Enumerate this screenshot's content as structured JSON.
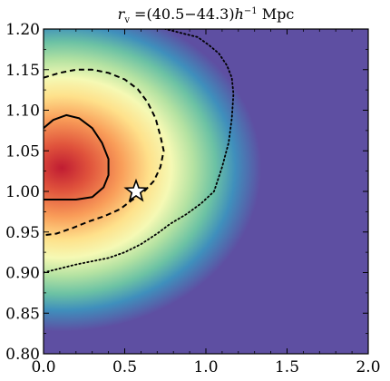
{
  "chart_data": {
    "type": "heatmap",
    "title": "r_v = (40.5−44.3) h⁻¹ Mpc",
    "title_parts": {
      "r": "r",
      "sub": "v",
      "range": " =(40.5−44.3)",
      "h": "h",
      "sup": "−1",
      "unit": " Mpc"
    },
    "xlabel": "",
    "ylabel": "",
    "xlim": [
      0.0,
      2.0
    ],
    "ylim": [
      0.8,
      1.2
    ],
    "x_ticks": [
      0.0,
      0.5,
      1.0,
      1.5,
      2.0
    ],
    "x_tick_labels": [
      "0.0",
      "0.5",
      "1.0",
      "1.5",
      "2.0"
    ],
    "y_ticks": [
      0.8,
      0.85,
      0.9,
      0.95,
      1.0,
      1.05,
      1.1,
      1.15,
      1.2
    ],
    "y_tick_labels": [
      "0.80",
      "0.85",
      "0.90",
      "0.95",
      "1.00",
      "1.05",
      "1.10",
      "1.15",
      "1.20"
    ],
    "colormap": "Spectral_r",
    "background_color": "#5e4fa2",
    "peak": {
      "x": 0.1,
      "y": 1.035
    },
    "contours": [
      {
        "style": "solid",
        "points": [
          [
            0.0,
            1.078
          ],
          [
            0.06,
            1.088
          ],
          [
            0.14,
            1.094
          ],
          [
            0.22,
            1.09
          ],
          [
            0.3,
            1.078
          ],
          [
            0.36,
            1.06
          ],
          [
            0.4,
            1.04
          ],
          [
            0.4,
            1.02
          ],
          [
            0.37,
            1.005
          ],
          [
            0.3,
            0.993
          ],
          [
            0.2,
            0.99
          ],
          [
            0.1,
            0.99
          ],
          [
            0.0,
            0.99
          ]
        ]
      },
      {
        "style": "dashed",
        "points": [
          [
            0.0,
            1.14
          ],
          [
            0.1,
            1.146
          ],
          [
            0.2,
            1.15
          ],
          [
            0.3,
            1.15
          ],
          [
            0.4,
            1.146
          ],
          [
            0.5,
            1.138
          ],
          [
            0.58,
            1.126
          ],
          [
            0.64,
            1.11
          ],
          [
            0.69,
            1.09
          ],
          [
            0.72,
            1.068
          ],
          [
            0.74,
            1.05
          ],
          [
            0.72,
            1.03
          ],
          [
            0.68,
            1.013
          ],
          [
            0.62,
            1.0
          ],
          [
            0.55,
            0.99
          ],
          [
            0.47,
            0.978
          ],
          [
            0.38,
            0.97
          ],
          [
            0.28,
            0.963
          ],
          [
            0.18,
            0.955
          ],
          [
            0.08,
            0.948
          ],
          [
            0.0,
            0.946
          ]
        ]
      },
      {
        "style": "dotted",
        "points": [
          [
            0.0,
            0.9
          ],
          [
            0.1,
            0.905
          ],
          [
            0.2,
            0.91
          ],
          [
            0.3,
            0.914
          ],
          [
            0.4,
            0.918
          ],
          [
            0.5,
            0.925
          ],
          [
            0.6,
            0.935
          ],
          [
            0.7,
            0.948
          ],
          [
            0.78,
            0.96
          ],
          [
            0.88,
            0.972
          ],
          [
            0.97,
            0.985
          ],
          [
            1.05,
            1.0
          ],
          [
            1.1,
            1.03
          ],
          [
            1.14,
            1.06
          ],
          [
            1.16,
            1.09
          ],
          [
            1.17,
            1.12
          ],
          [
            1.16,
            1.14
          ],
          [
            1.13,
            1.155
          ],
          [
            1.08,
            1.17
          ],
          [
            1.02,
            1.18
          ],
          [
            0.95,
            1.19
          ],
          [
            0.85,
            1.195
          ],
          [
            0.75,
            1.2
          ]
        ]
      }
    ],
    "marker": {
      "shape": "star",
      "x": 0.57,
      "y": 1.0,
      "fill": "#ffffff",
      "stroke": "#000000"
    },
    "grid": false,
    "legend": "none"
  }
}
